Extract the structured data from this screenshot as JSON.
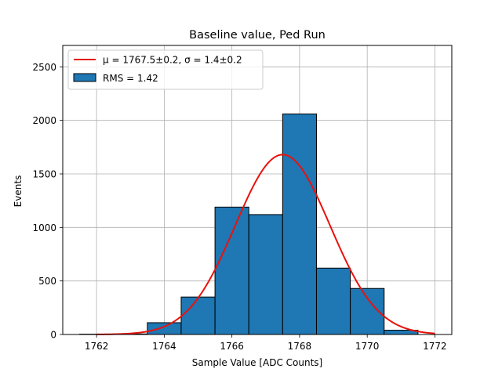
{
  "chart_data": {
    "type": "bar",
    "title": "Baseline value, Ped Run",
    "xlabel": "Sample Value [ADC Counts]",
    "ylabel": "Events",
    "xlim": [
      1761.0,
      1772.5
    ],
    "ylim": [
      0,
      2700
    ],
    "x_ticks": [
      1762,
      1764,
      1766,
      1768,
      1770,
      1772
    ],
    "x_tick_labels": [
      "1762",
      "1764",
      "1766",
      "1768",
      "1770",
      "1772"
    ],
    "y_ticks": [
      0,
      500,
      1000,
      1500,
      2000,
      2500
    ],
    "y_tick_labels": [
      "0",
      "500",
      "1000",
      "1500",
      "2000",
      "2500"
    ],
    "grid": true,
    "legend_position": "top-left",
    "histogram": {
      "name": "RMS = 1.42",
      "color": "#1f77b4",
      "edge_color": "#000000",
      "bins": [
        {
          "x0": 1761.5,
          "x1": 1762.5,
          "count": 3
        },
        {
          "x0": 1762.5,
          "x1": 1763.5,
          "count": 5
        },
        {
          "x0": 1763.5,
          "x1": 1764.5,
          "count": 110
        },
        {
          "x0": 1764.5,
          "x1": 1765.5,
          "count": 350
        },
        {
          "x0": 1765.5,
          "x1": 1766.5,
          "count": 1190
        },
        {
          "x0": 1766.5,
          "x1": 1767.5,
          "count": 1120
        },
        {
          "x0": 1767.5,
          "x1": 1768.5,
          "count": 2060
        },
        {
          "x0": 1768.5,
          "x1": 1769.5,
          "count": 620
        },
        {
          "x0": 1769.5,
          "x1": 1770.5,
          "count": 430
        },
        {
          "x0": 1770.5,
          "x1": 1771.5,
          "count": 40
        }
      ]
    },
    "fit": {
      "name": "μ = 1767.5±0.2, σ = 1.4±0.2",
      "type": "gaussian",
      "color": "#e8120c",
      "mu": 1767.5,
      "sigma": 1.4,
      "amplitude": 1680,
      "x_range": [
        1762,
        1772
      ]
    }
  }
}
